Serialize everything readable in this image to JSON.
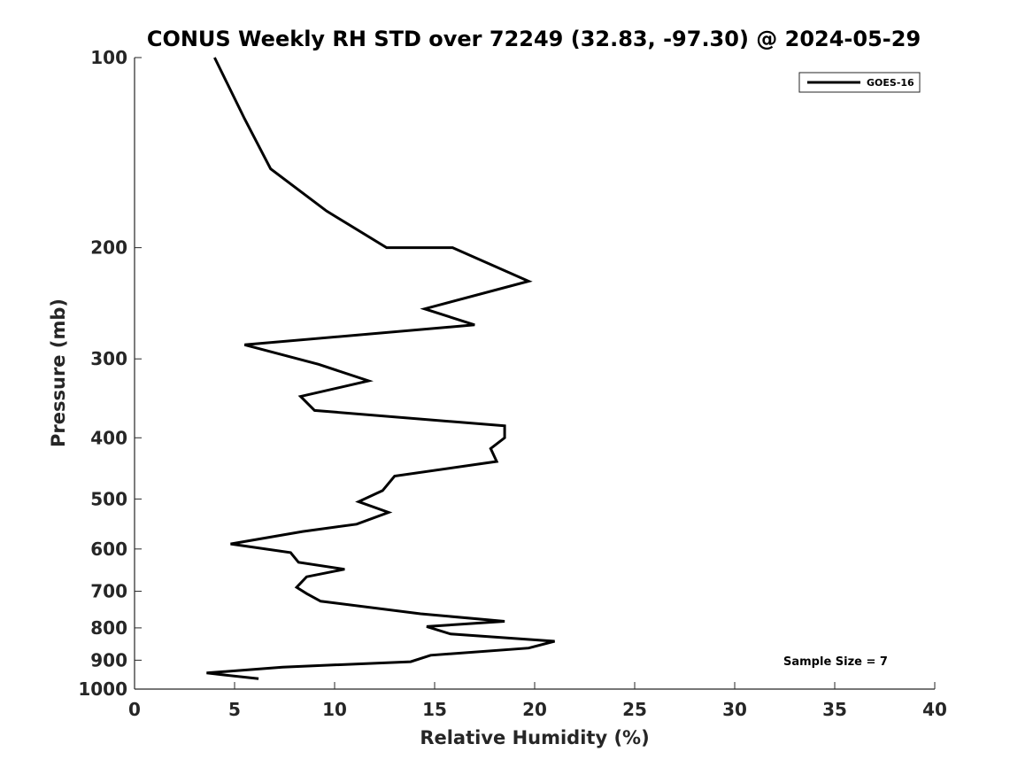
{
  "chart_data": {
    "type": "line",
    "title": "CONUS Weekly RH STD over 72249 (32.83, -97.30) @ 2024-05-29",
    "xlabel": "Relative Humidity (%)",
    "ylabel": "Pressure (mb)",
    "xlim": [
      0,
      40
    ],
    "ylim": [
      100,
      1000
    ],
    "y_scale": "log",
    "y_reversed": true,
    "grid": false,
    "x_ticks": [
      0,
      5,
      10,
      15,
      20,
      25,
      30,
      35,
      40
    ],
    "y_ticks": [
      100,
      200,
      300,
      400,
      500,
      600,
      700,
      800,
      900,
      1000
    ],
    "legend": {
      "position": "top-right",
      "entries": [
        "GOES-16"
      ]
    },
    "annotation": "Sample Size = 7",
    "series": [
      {
        "name": "GOES-16",
        "color": "#000000",
        "points": [
          [
            4.0,
            100
          ],
          [
            5.5,
            125
          ],
          [
            6.8,
            150
          ],
          [
            9.6,
            175
          ],
          [
            12.6,
            200
          ],
          [
            15.9,
            200
          ],
          [
            19.7,
            226
          ],
          [
            14.5,
            250
          ],
          [
            17.0,
            265
          ],
          [
            5.5,
            285
          ],
          [
            9.2,
            306
          ],
          [
            11.7,
            325
          ],
          [
            8.3,
            344
          ],
          [
            9.0,
            362
          ],
          [
            18.5,
            383
          ],
          [
            18.5,
            400
          ],
          [
            17.8,
            416
          ],
          [
            18.1,
            436
          ],
          [
            13.0,
            460
          ],
          [
            12.4,
            485
          ],
          [
            11.2,
            505
          ],
          [
            12.7,
            525
          ],
          [
            11.1,
            548
          ],
          [
            8.4,
            563
          ],
          [
            4.8,
            589
          ],
          [
            7.8,
            608
          ],
          [
            8.2,
            630
          ],
          [
            10.5,
            646
          ],
          [
            8.6,
            664
          ],
          [
            8.1,
            690
          ],
          [
            8.6,
            706
          ],
          [
            9.3,
            726
          ],
          [
            14.3,
            760
          ],
          [
            18.5,
            781
          ],
          [
            14.6,
            796
          ],
          [
            15.8,
            818
          ],
          [
            21.0,
            840
          ],
          [
            19.7,
            861
          ],
          [
            14.8,
            884
          ],
          [
            13.8,
            905
          ],
          [
            7.4,
            923
          ],
          [
            3.6,
            943
          ],
          [
            6.2,
            963
          ]
        ]
      }
    ]
  }
}
